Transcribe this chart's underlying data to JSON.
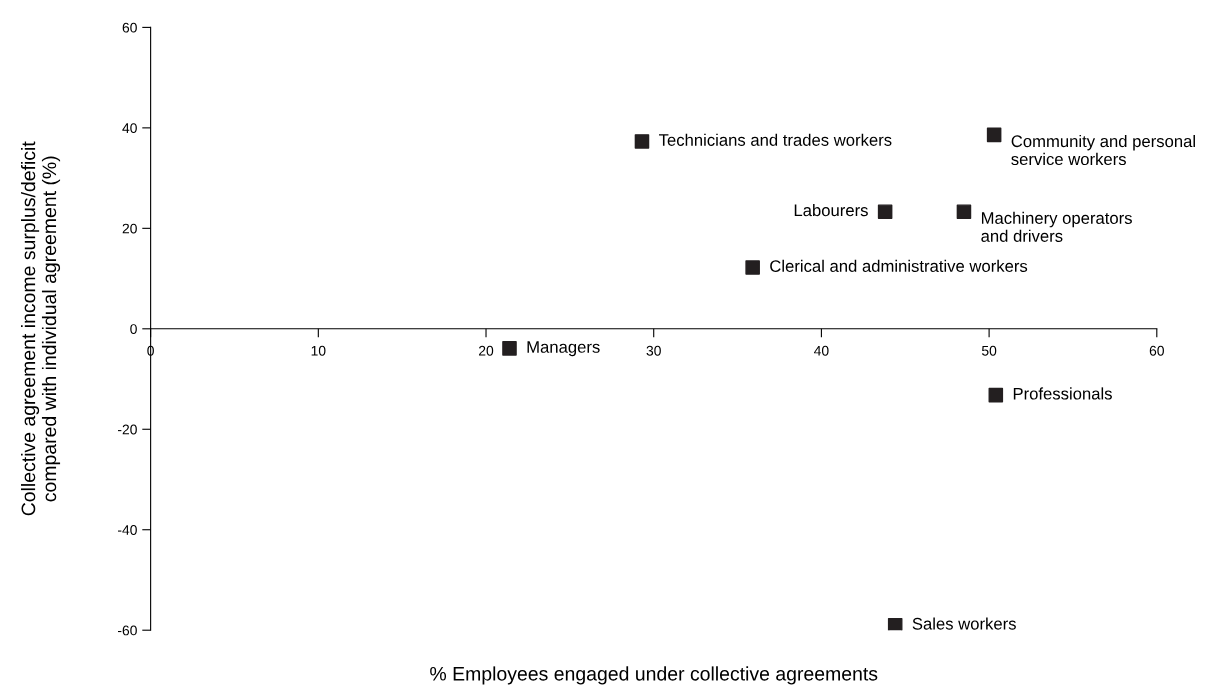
{
  "chart_data": {
    "type": "scatter",
    "xlabel": "% Employees engaged under collective agreements",
    "ylabel": "Collective agreement income surplus/deficit\ncompared with individual agreement (%)",
    "x": [
      29.3,
      50.3,
      43.8,
      48.5,
      35.9,
      21.4,
      50.4,
      44.4
    ],
    "series": [
      {
        "color": "#231f20",
        "values": [
          37.3,
          38.6,
          23.3,
          23.3,
          12.2,
          -3.9,
          -13.2,
          -59
        ]
      }
    ],
    "marker": "square",
    "grid": false,
    "legend": false,
    "xlim": [
      0,
      60
    ],
    "xticks": [
      0,
      10,
      20,
      30,
      40,
      50,
      60
    ],
    "ylim": [
      -60,
      60
    ],
    "yticks": [
      {
        "value": -60,
        "label": "-60"
      },
      {
        "value": -40,
        "label": "-40"
      },
      {
        "value": -20,
        "label": "-20"
      },
      0,
      20,
      40,
      60
    ],
    "annotations": [
      {
        "text": "Technicians and trades workers",
        "x": 29.3,
        "y": 37.3
      },
      {
        "text": "Community and personal\nservice workers",
        "x": 50.3,
        "y": 38.6
      },
      {
        "text": "Labourers",
        "x": 43.8,
        "y": 23.3
      },
      {
        "text": "Machinery operators\nand drivers",
        "x": 48.5,
        "y": 23.3
      },
      {
        "text": "Clerical and administrative workers",
        "x": 35.9,
        "y": 12.2
      },
      {
        "text": "Managers",
        "x": 21.4,
        "y": -3.9
      },
      {
        "text": "Professionals",
        "x": 50.4,
        "y": -13.2
      },
      {
        "text": "Sales workers",
        "x": 44.4,
        "y": -59
      }
    ]
  }
}
